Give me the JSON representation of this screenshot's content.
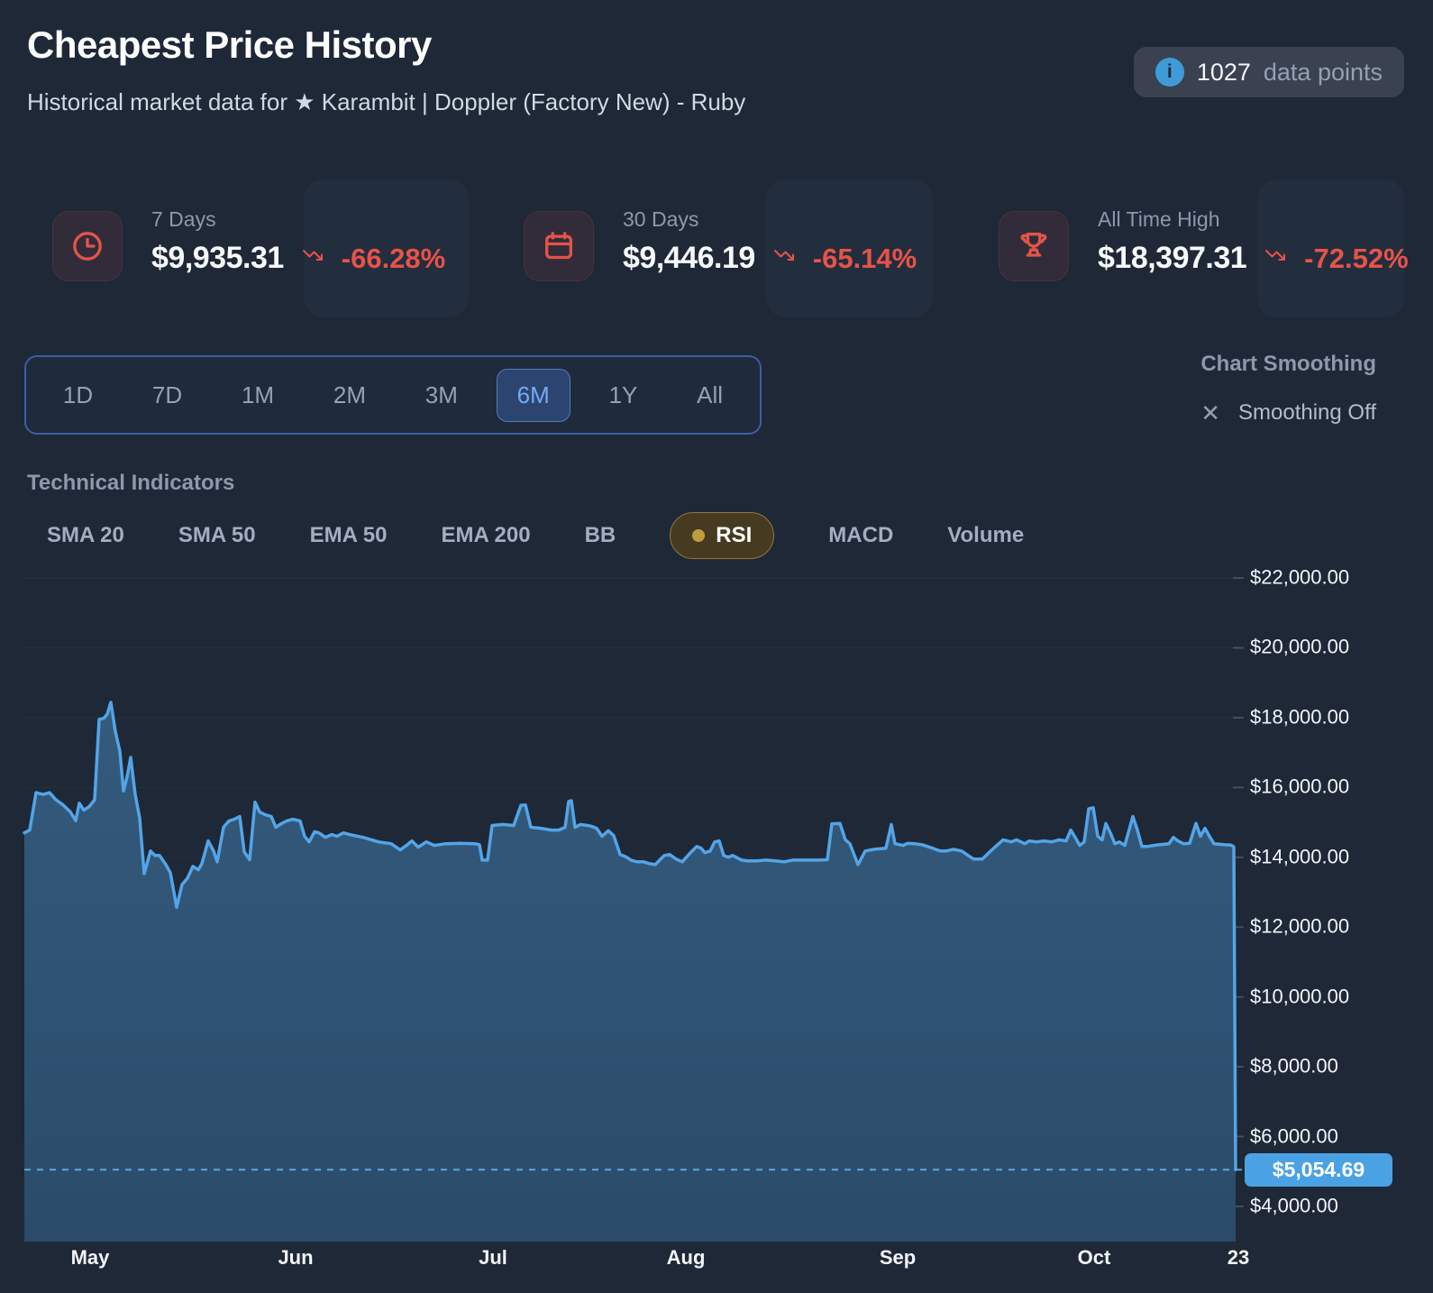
{
  "header": {
    "title": "Cheapest Price History",
    "subtitle": "Historical market data for ★ Karambit | Doppler (Factory New) - Ruby",
    "badge": {
      "count": "1027",
      "label": "data points"
    }
  },
  "stats": [
    {
      "label": "7 Days",
      "value": "$9,935.31",
      "change": "-66.28%",
      "icon": "clock-icon"
    },
    {
      "label": "30 Days",
      "value": "$9,446.19",
      "change": "-65.14%",
      "icon": "calendar-icon"
    },
    {
      "label": "All Time High",
      "value": "$18,397.31",
      "change": "-72.52%",
      "icon": "trophy-icon"
    }
  ],
  "range_selector": {
    "options": [
      "1D",
      "7D",
      "1M",
      "2M",
      "3M",
      "6M",
      "1Y",
      "All"
    ],
    "active": "6M"
  },
  "smoothing": {
    "label": "Chart Smoothing",
    "status": "Smoothing Off",
    "icon": "close-icon"
  },
  "indicators": {
    "label": "Technical Indicators",
    "items": [
      {
        "label": "SMA 20",
        "active": false
      },
      {
        "label": "SMA 50",
        "active": false
      },
      {
        "label": "EMA 50",
        "active": false
      },
      {
        "label": "EMA 200",
        "active": false
      },
      {
        "label": "BB",
        "active": false
      },
      {
        "label": "RSI",
        "active": true
      },
      {
        "label": "MACD",
        "active": false
      },
      {
        "label": "Volume",
        "active": false
      }
    ]
  },
  "colors": {
    "background": "#1e2837",
    "accent_blue": "#54a4e8",
    "negative_red": "#e8524a",
    "active_tab_blue": "#74abf6",
    "rsi_gold": "#c09c3f",
    "price_badge_blue": "#4aa2e4",
    "info_icon_blue": "#3f9bd8"
  },
  "chart_data": {
    "type": "area",
    "unit": "USD",
    "ylim": [
      3000,
      23000
    ],
    "grid": "horizontal",
    "legend": "none",
    "y_ticks": [
      {
        "label": "$22,000.00",
        "value": 22000
      },
      {
        "label": "$20,000.00",
        "value": 20000
      },
      {
        "label": "$18,000.00",
        "value": 18000
      },
      {
        "label": "$16,000.00",
        "value": 16000
      },
      {
        "label": "$14,000.00",
        "value": 14000
      },
      {
        "label": "$12,000.00",
        "value": 12000
      },
      {
        "label": "$10,000.00",
        "value": 10000
      },
      {
        "label": "$8,000.00",
        "value": 8000
      },
      {
        "label": "$6,000.00",
        "value": 6000
      },
      {
        "label": "$4,000.00",
        "value": 4000
      }
    ],
    "x_ticks": [
      "May",
      "Jun",
      "Jul",
      "Aug",
      "Sep",
      "Oct",
      "23"
    ],
    "current_price": {
      "label": "$5,054.69",
      "value": 5054.69
    },
    "points": [
      [
        27,
        14700
      ],
      [
        33,
        14780
      ],
      [
        40,
        15850
      ],
      [
        48,
        15800
      ],
      [
        55,
        15850
      ],
      [
        62,
        15650
      ],
      [
        70,
        15500
      ],
      [
        78,
        15300
      ],
      [
        84,
        15050
      ],
      [
        88,
        15550
      ],
      [
        93,
        15350
      ],
      [
        99,
        15450
      ],
      [
        105,
        15650
      ],
      [
        110,
        17950
      ],
      [
        115,
        17980
      ],
      [
        119,
        18100
      ],
      [
        123,
        18440
      ],
      [
        128,
        17600
      ],
      [
        133,
        17040
      ],
      [
        137,
        15900
      ],
      [
        141,
        16300
      ],
      [
        145,
        16860
      ],
      [
        150,
        15800
      ],
      [
        155,
        15120
      ],
      [
        160,
        13530
      ],
      [
        167,
        14180
      ],
      [
        172,
        14050
      ],
      [
        177,
        14050
      ],
      [
        184,
        13790
      ],
      [
        189,
        13560
      ],
      [
        196,
        12570
      ],
      [
        202,
        13220
      ],
      [
        208,
        13400
      ],
      [
        214,
        13740
      ],
      [
        220,
        13640
      ],
      [
        224,
        13820
      ],
      [
        231,
        14470
      ],
      [
        237,
        14180
      ],
      [
        241,
        13870
      ],
      [
        248,
        14860
      ],
      [
        254,
        15040
      ],
      [
        260,
        15090
      ],
      [
        266,
        15170
      ],
      [
        271,
        14160
      ],
      [
        277,
        13930
      ],
      [
        283,
        15580
      ],
      [
        288,
        15300
      ],
      [
        294,
        15220
      ],
      [
        301,
        15170
      ],
      [
        306,
        14860
      ],
      [
        312,
        14960
      ],
      [
        318,
        15040
      ],
      [
        325,
        15090
      ],
      [
        333,
        15040
      ],
      [
        338,
        14600
      ],
      [
        343,
        14440
      ],
      [
        349,
        14730
      ],
      [
        354,
        14700
      ],
      [
        361,
        14570
      ],
      [
        368,
        14650
      ],
      [
        374,
        14600
      ],
      [
        381,
        14700
      ],
      [
        388,
        14650
      ],
      [
        403,
        14570
      ],
      [
        420,
        14440
      ],
      [
        434,
        14390
      ],
      [
        444,
        14210
      ],
      [
        451,
        14340
      ],
      [
        457,
        14470
      ],
      [
        464,
        14290
      ],
      [
        473,
        14440
      ],
      [
        482,
        14340
      ],
      [
        495,
        14390
      ],
      [
        510,
        14400
      ],
      [
        527,
        14390
      ],
      [
        532,
        14360
      ],
      [
        535,
        13920
      ],
      [
        541,
        13920
      ],
      [
        546,
        14910
      ],
      [
        558,
        14940
      ],
      [
        570,
        14910
      ],
      [
        578,
        15490
      ],
      [
        583,
        15500
      ],
      [
        589,
        14860
      ],
      [
        600,
        14830
      ],
      [
        612,
        14780
      ],
      [
        620,
        14780
      ],
      [
        627,
        14860
      ],
      [
        631,
        15600
      ],
      [
        634,
        15620
      ],
      [
        638,
        14860
      ],
      [
        644,
        14940
      ],
      [
        652,
        14910
      ],
      [
        656,
        14890
      ],
      [
        662,
        14830
      ],
      [
        668,
        14600
      ],
      [
        675,
        14760
      ],
      [
        681,
        14620
      ],
      [
        688,
        14080
      ],
      [
        694,
        14020
      ],
      [
        700,
        13920
      ],
      [
        707,
        13870
      ],
      [
        714,
        13870
      ],
      [
        720,
        13820
      ],
      [
        727,
        13790
      ],
      [
        737,
        14050
      ],
      [
        743,
        14080
      ],
      [
        750,
        13950
      ],
      [
        757,
        13870
      ],
      [
        765,
        14100
      ],
      [
        773,
        14310
      ],
      [
        778,
        14260
      ],
      [
        782,
        14130
      ],
      [
        788,
        14180
      ],
      [
        793,
        14440
      ],
      [
        798,
        14470
      ],
      [
        803,
        14050
      ],
      [
        808,
        14000
      ],
      [
        813,
        14050
      ],
      [
        823,
        13920
      ],
      [
        830,
        13900
      ],
      [
        840,
        13900
      ],
      [
        850,
        13920
      ],
      [
        860,
        13900
      ],
      [
        870,
        13870
      ],
      [
        880,
        13920
      ],
      [
        897,
        13920
      ],
      [
        910,
        13920
      ],
      [
        918,
        13930
      ],
      [
        923,
        14960
      ],
      [
        932,
        14970
      ],
      [
        938,
        14500
      ],
      [
        943,
        14390
      ],
      [
        952,
        13790
      ],
      [
        960,
        14180
      ],
      [
        970,
        14230
      ],
      [
        983,
        14260
      ],
      [
        989,
        14940
      ],
      [
        993,
        14390
      ],
      [
        1002,
        14340
      ],
      [
        1007,
        14400
      ],
      [
        1015,
        14390
      ],
      [
        1023,
        14360
      ],
      [
        1035,
        14260
      ],
      [
        1043,
        14180
      ],
      [
        1050,
        14180
      ],
      [
        1058,
        14230
      ],
      [
        1067,
        14180
      ],
      [
        1080,
        13950
      ],
      [
        1090,
        13950
      ],
      [
        1100,
        14200
      ],
      [
        1113,
        14500
      ],
      [
        1122,
        14440
      ],
      [
        1128,
        14500
      ],
      [
        1137,
        14390
      ],
      [
        1142,
        14470
      ],
      [
        1150,
        14440
      ],
      [
        1158,
        14470
      ],
      [
        1167,
        14440
      ],
      [
        1175,
        14500
      ],
      [
        1183,
        14470
      ],
      [
        1188,
        14780
      ],
      [
        1193,
        14570
      ],
      [
        1198,
        14340
      ],
      [
        1203,
        14440
      ],
      [
        1208,
        15390
      ],
      [
        1213,
        15420
      ],
      [
        1218,
        14600
      ],
      [
        1223,
        14500
      ],
      [
        1227,
        14970
      ],
      [
        1232,
        14700
      ],
      [
        1237,
        14390
      ],
      [
        1242,
        14440
      ],
      [
        1248,
        14340
      ],
      [
        1257,
        15170
      ],
      [
        1262,
        14780
      ],
      [
        1267,
        14310
      ],
      [
        1273,
        14310
      ],
      [
        1280,
        14340
      ],
      [
        1287,
        14360
      ],
      [
        1297,
        14390
      ],
      [
        1302,
        14570
      ],
      [
        1307,
        14470
      ],
      [
        1313,
        14390
      ],
      [
        1320,
        14400
      ],
      [
        1327,
        14970
      ],
      [
        1332,
        14600
      ],
      [
        1337,
        14830
      ],
      [
        1342,
        14600
      ],
      [
        1347,
        14390
      ],
      [
        1358,
        14360
      ],
      [
        1366,
        14350
      ],
      [
        1369,
        14300
      ],
      [
        1371,
        5054.69
      ]
    ]
  }
}
